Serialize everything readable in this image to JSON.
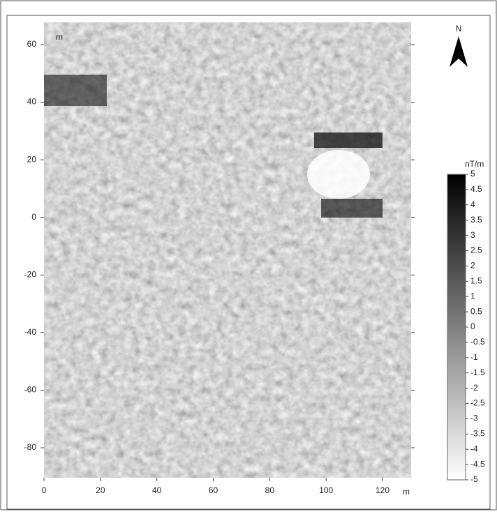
{
  "north": "N",
  "x_axis": {
    "unit": "m",
    "ticks": [
      0,
      20,
      40,
      60,
      80,
      100,
      120
    ]
  },
  "y_axis": {
    "unit": "m",
    "ticks": [
      60,
      40,
      20,
      0,
      -20,
      -40,
      -60,
      -80
    ]
  },
  "colorbar": {
    "unit": "nT/m",
    "ticks": [
      5,
      4.5,
      4,
      3.5,
      3,
      2.5,
      2,
      1.5,
      1,
      0.5,
      0,
      -0.5,
      -1,
      -1.5,
      -2,
      -2.5,
      -3,
      -3.5,
      -4,
      -4.5,
      -5
    ]
  }
}
